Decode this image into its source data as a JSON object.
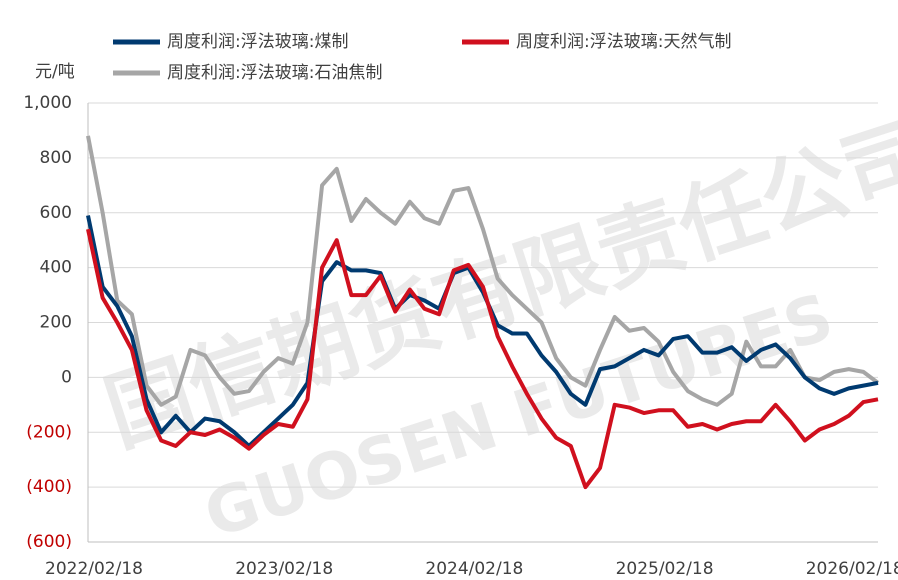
{
  "chart_data": {
    "type": "line",
    "y_axis_label": "元/吨",
    "watermark": [
      "国信期货有限责任公司",
      "GUOSEN FUTURES"
    ],
    "categories": [
      "2022/02/18",
      null,
      null,
      null,
      null,
      null,
      null,
      null,
      null,
      null,
      null,
      null,
      null,
      "2023/02/18",
      null,
      null,
      null,
      null,
      null,
      null,
      null,
      null,
      null,
      null,
      null,
      null,
      "2024/02/18",
      null,
      null,
      null,
      null,
      null,
      null,
      null,
      null,
      null,
      null,
      null,
      null,
      "2025/02/18",
      null,
      null,
      null,
      null,
      null,
      null,
      null,
      null,
      null,
      null,
      null,
      null,
      "2026/02/18",
      null,
      null
    ],
    "series": [
      {
        "name": "周度利润:浮法玻璃:煤制",
        "color": "#003a70",
        "values": [
          590,
          330,
          260,
          150,
          -80,
          -200,
          -140,
          -200,
          -150,
          -160,
          -200,
          -250,
          -200,
          -150,
          -100,
          -20,
          350,
          420,
          390,
          390,
          380,
          250,
          300,
          280,
          250,
          380,
          400,
          310,
          190,
          160,
          160,
          80,
          20,
          -60,
          -100,
          30,
          40,
          70,
          100,
          80,
          140,
          150,
          90,
          90,
          110,
          60,
          100,
          120,
          70,
          0,
          -40,
          -60,
          -40,
          -30,
          -20
        ]
      },
      {
        "name": "周度利润:浮法玻璃:天然气制",
        "color": "#d0101e",
        "values": [
          540,
          290,
          200,
          100,
          -120,
          -230,
          -250,
          -200,
          -210,
          -190,
          -220,
          -260,
          -210,
          -170,
          -180,
          -80,
          400,
          500,
          300,
          300,
          370,
          240,
          320,
          250,
          230,
          390,
          410,
          330,
          150,
          40,
          -60,
          -150,
          -220,
          -250,
          -400,
          -330,
          -100,
          -110,
          -130,
          -120,
          -120,
          -180,
          -170,
          -190,
          -170,
          -160,
          -160,
          -100,
          -160,
          -230,
          -190,
          -170,
          -140,
          -90,
          -80
        ]
      },
      {
        "name": "周度利润:浮法玻璃:石油焦制",
        "color": "#a6a6a6",
        "values": [
          880,
          600,
          280,
          230,
          -30,
          -100,
          -70,
          100,
          80,
          0,
          -60,
          -50,
          20,
          70,
          50,
          200,
          700,
          760,
          570,
          650,
          600,
          560,
          640,
          580,
          560,
          680,
          690,
          540,
          360,
          300,
          250,
          200,
          70,
          0,
          -30,
          100,
          220,
          170,
          180,
          130,
          20,
          -50,
          -80,
          -100,
          -60,
          130,
          40,
          40,
          100,
          0,
          -10,
          20,
          30,
          20,
          -20
        ]
      }
    ],
    "ylim": [
      -600,
      1000
    ],
    "yticks": [
      {
        "value": -600,
        "label": "(600)"
      },
      {
        "value": -400,
        "label": "(400)"
      },
      {
        "value": -200,
        "label": "(200)"
      },
      0,
      200,
      400,
      600,
      800,
      {
        "value": 1000,
        "label": "1,000"
      }
    ],
    "grid": true,
    "negative_tick_color": "#c00000"
  }
}
